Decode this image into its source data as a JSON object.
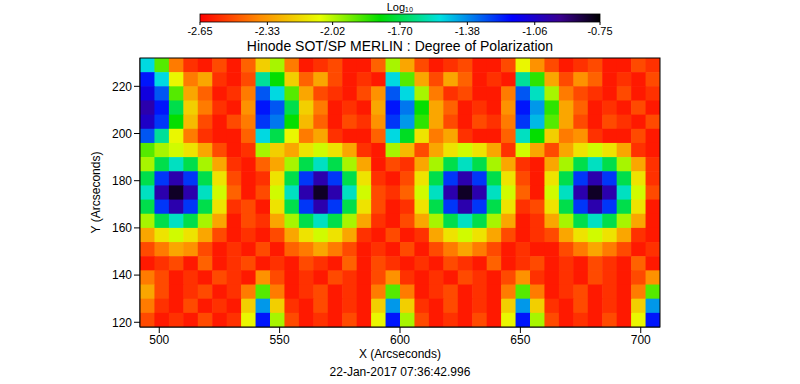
{
  "chart_data": {
    "type": "heatmap",
    "title": "Hinode SOT/SP MERLIN : Degree of Polarization",
    "annotation": "22-Jan-2017 07:36:42.996",
    "x_label": "X (Arcseconds)",
    "y_label": "Y (Arcseconds)",
    "xlim": [
      492,
      708
    ],
    "xticks": [
      500,
      550,
      600,
      650,
      700
    ],
    "ylim": [
      118,
      232
    ],
    "yticks": [
      120,
      140,
      160,
      180,
      200,
      220
    ],
    "x": [
      495,
      501,
      507,
      513,
      519,
      525,
      531,
      537,
      543,
      549,
      555,
      561,
      567,
      573,
      579,
      585,
      591,
      597,
      603,
      609,
      615,
      621,
      627,
      633,
      639,
      645,
      651,
      657,
      663,
      669,
      675,
      681,
      687,
      693,
      699,
      705
    ],
    "y": [
      229,
      223,
      217,
      211,
      205,
      199,
      193,
      187,
      181,
      175,
      169,
      163,
      157,
      151,
      145,
      139,
      133,
      127,
      121
    ],
    "z": [
      [
        -1.5,
        -1.9,
        -2.4,
        -2.55,
        -2.6,
        -2.5,
        -2.6,
        -2.45,
        -2.2,
        -2.0,
        -2.4,
        -2.6,
        -2.55,
        -2.5,
        -2.6,
        -2.6,
        -2.45,
        -2.0,
        -2.3,
        -2.5,
        -2.6,
        -2.55,
        -2.5,
        -2.6,
        -2.6,
        -2.5,
        -2.1,
        -2.35,
        -2.5,
        -2.6,
        -2.55,
        -2.5,
        -2.6,
        -2.6,
        -2.5,
        -2.55
      ],
      [
        -1.2,
        -1.5,
        -2.1,
        -2.4,
        -2.3,
        -2.55,
        -2.6,
        -2.5,
        -1.6,
        -1.8,
        -2.2,
        -2.45,
        -2.3,
        -2.5,
        -2.6,
        -2.55,
        -2.6,
        -1.5,
        -1.9,
        -2.3,
        -2.5,
        -2.3,
        -2.45,
        -2.6,
        -2.55,
        -2.6,
        -1.6,
        -1.85,
        -2.3,
        -2.5,
        -2.35,
        -2.45,
        -2.6,
        -2.55,
        -2.6,
        -2.5
      ],
      [
        -1.1,
        -1.3,
        -1.9,
        -2.3,
        -2.45,
        -2.6,
        -2.55,
        -2.4,
        -1.3,
        -1.5,
        -1.9,
        -2.3,
        -2.5,
        -2.55,
        -2.6,
        -2.5,
        -2.35,
        -1.3,
        -1.5,
        -2.0,
        -2.4,
        -2.55,
        -2.5,
        -2.6,
        -2.6,
        -2.4,
        -1.3,
        -1.55,
        -2.0,
        -2.4,
        -2.5,
        -2.55,
        -2.6,
        -2.5,
        -2.6,
        -2.55
      ],
      [
        -1.0,
        -1.2,
        -1.7,
        -2.2,
        -2.4,
        -2.55,
        -2.6,
        -2.35,
        -1.2,
        -1.3,
        -1.7,
        -2.2,
        -2.4,
        -2.6,
        -2.55,
        -2.6,
        -2.3,
        -1.2,
        -1.35,
        -1.8,
        -2.3,
        -2.45,
        -2.6,
        -2.55,
        -2.6,
        -2.35,
        -1.2,
        -1.4,
        -1.85,
        -2.3,
        -2.45,
        -2.6,
        -2.55,
        -2.6,
        -2.5,
        -2.6
      ],
      [
        -1.05,
        -1.25,
        -1.8,
        -2.25,
        -2.5,
        -2.6,
        -2.5,
        -2.4,
        -1.25,
        -1.35,
        -1.8,
        -2.25,
        -2.45,
        -2.6,
        -2.5,
        -2.55,
        -2.35,
        -1.25,
        -1.4,
        -1.85,
        -2.3,
        -2.5,
        -2.6,
        -2.5,
        -2.55,
        -2.4,
        -1.25,
        -1.45,
        -1.9,
        -2.3,
        -2.5,
        -2.6,
        -2.5,
        -2.55,
        -2.6,
        -2.5
      ],
      [
        -1.3,
        -1.6,
        -2.1,
        -2.4,
        -2.55,
        -2.6,
        -2.6,
        -2.45,
        -1.5,
        -1.7,
        -2.1,
        -2.4,
        -2.3,
        -2.55,
        -2.6,
        -2.6,
        -2.45,
        -1.5,
        -1.75,
        -2.15,
        -2.4,
        -2.3,
        -2.55,
        -2.6,
        -2.6,
        -2.45,
        -1.55,
        -1.8,
        -2.2,
        -2.4,
        -2.35,
        -2.55,
        -2.6,
        -2.6,
        -2.5,
        -2.6
      ],
      [
        -1.9,
        -2.0,
        -2.05,
        -2.15,
        -2.3,
        -2.5,
        -2.6,
        -2.55,
        -2.0,
        -2.2,
        -2.3,
        -2.15,
        -2.05,
        -2.15,
        -2.3,
        -2.55,
        -2.6,
        -2.0,
        -2.25,
        -2.5,
        -2.3,
        -2.15,
        -2.05,
        -2.15,
        -2.3,
        -2.55,
        -2.05,
        -2.3,
        -2.5,
        -2.3,
        -2.15,
        -2.05,
        -2.15,
        -2.3,
        -2.55,
        -2.6
      ],
      [
        -2.0,
        -1.7,
        -1.55,
        -1.7,
        -2.0,
        -2.3,
        -2.55,
        -2.6,
        -2.45,
        -2.3,
        -2.0,
        -1.7,
        -1.55,
        -1.7,
        -2.0,
        -2.3,
        -2.6,
        -2.5,
        -2.55,
        -2.3,
        -2.0,
        -1.7,
        -1.55,
        -1.7,
        -2.0,
        -2.3,
        -2.55,
        -2.6,
        -2.3,
        -2.0,
        -1.7,
        -1.55,
        -1.7,
        -2.0,
        -2.3,
        -2.55
      ],
      [
        -1.7,
        -1.25,
        -1.0,
        -1.25,
        -1.7,
        -2.15,
        -2.5,
        -2.6,
        -2.55,
        -2.15,
        -1.7,
        -1.25,
        -1.0,
        -1.25,
        -1.7,
        -2.15,
        -2.55,
        -2.6,
        -2.5,
        -2.15,
        -1.7,
        -1.25,
        -1.0,
        -1.25,
        -1.7,
        -2.15,
        -2.5,
        -2.6,
        -2.15,
        -1.7,
        -1.25,
        -1.0,
        -1.25,
        -1.7,
        -2.15,
        -2.55
      ],
      [
        -1.55,
        -1.0,
        -0.8,
        -1.0,
        -1.55,
        -2.05,
        -2.45,
        -2.6,
        -2.5,
        -2.05,
        -1.55,
        -1.0,
        -0.8,
        -1.0,
        -1.55,
        -2.05,
        -2.5,
        -2.55,
        -2.45,
        -2.05,
        -1.55,
        -1.0,
        -0.8,
        -1.0,
        -1.55,
        -2.05,
        -2.45,
        -2.6,
        -2.05,
        -1.55,
        -1.0,
        -0.8,
        -1.0,
        -1.55,
        -2.05,
        -2.5
      ],
      [
        -1.7,
        -1.25,
        -1.0,
        -1.25,
        -1.7,
        -2.15,
        -2.55,
        -2.5,
        -2.6,
        -2.15,
        -1.7,
        -1.25,
        -1.0,
        -1.25,
        -1.7,
        -2.15,
        -2.5,
        -2.6,
        -2.55,
        -2.15,
        -1.7,
        -1.25,
        -1.0,
        -1.25,
        -1.7,
        -2.15,
        -2.55,
        -2.5,
        -2.15,
        -1.7,
        -1.25,
        -1.0,
        -1.25,
        -1.7,
        -2.15,
        -2.6
      ],
      [
        -2.0,
        -1.7,
        -1.55,
        -1.7,
        -2.0,
        -2.3,
        -2.6,
        -2.5,
        -2.55,
        -2.3,
        -2.0,
        -1.7,
        -1.55,
        -1.7,
        -2.0,
        -2.3,
        -2.55,
        -2.6,
        -2.5,
        -2.3,
        -2.0,
        -1.7,
        -1.55,
        -1.7,
        -2.0,
        -2.3,
        -2.6,
        -2.55,
        -2.3,
        -2.0,
        -1.7,
        -1.55,
        -1.7,
        -2.0,
        -2.3,
        -2.6
      ],
      [
        -2.3,
        -2.15,
        -2.05,
        -2.15,
        -2.3,
        -2.5,
        -2.6,
        -2.55,
        -2.6,
        -2.5,
        -2.3,
        -2.15,
        -2.05,
        -2.15,
        -2.3,
        -2.55,
        -2.6,
        -2.5,
        -2.6,
        -2.55,
        -2.3,
        -2.15,
        -2.05,
        -2.15,
        -2.3,
        -2.5,
        -2.6,
        -2.55,
        -2.5,
        -2.3,
        -2.15,
        -2.05,
        -2.15,
        -2.3,
        -2.55,
        -2.6
      ],
      [
        -2.5,
        -2.4,
        -2.3,
        -2.35,
        -2.5,
        -2.6,
        -2.55,
        -2.6,
        -2.5,
        -2.6,
        -2.45,
        -2.4,
        -2.3,
        -2.4,
        -2.5,
        -2.6,
        -2.55,
        -2.6,
        -2.5,
        -2.6,
        -2.5,
        -2.4,
        -2.3,
        -2.4,
        -2.5,
        -2.6,
        -2.55,
        -2.6,
        -2.6,
        -2.5,
        -2.4,
        -2.3,
        -2.4,
        -2.5,
        -2.6,
        -2.55
      ],
      [
        -2.6,
        -2.55,
        -2.5,
        -2.6,
        -2.45,
        -2.6,
        -2.55,
        -2.5,
        -2.6,
        -2.55,
        -2.6,
        -2.5,
        -2.55,
        -2.6,
        -2.45,
        -2.6,
        -2.5,
        -2.55,
        -2.6,
        -2.55,
        -2.6,
        -2.5,
        -2.55,
        -2.6,
        -2.45,
        -2.6,
        -2.55,
        -2.5,
        -2.6,
        -2.55,
        -2.6,
        -2.5,
        -2.55,
        -2.6,
        -2.45,
        -2.6
      ],
      [
        -2.4,
        -2.5,
        -2.6,
        -2.55,
        -2.6,
        -2.5,
        -2.55,
        -2.6,
        -2.35,
        -2.5,
        -2.6,
        -2.55,
        -2.6,
        -2.5,
        -2.55,
        -2.6,
        -2.5,
        -2.35,
        -2.55,
        -2.6,
        -2.55,
        -2.6,
        -2.5,
        -2.55,
        -2.6,
        -2.5,
        -2.35,
        -2.55,
        -2.6,
        -2.55,
        -2.6,
        -2.5,
        -2.55,
        -2.6,
        -2.5,
        -2.35
      ],
      [
        -2.3,
        -2.5,
        -2.6,
        -2.55,
        -2.5,
        -2.6,
        -2.55,
        -2.4,
        -1.9,
        -2.4,
        -2.6,
        -2.55,
        -2.5,
        -2.6,
        -2.55,
        -2.6,
        -2.4,
        -1.9,
        -2.4,
        -2.6,
        -2.55,
        -2.5,
        -2.6,
        -2.55,
        -2.6,
        -2.4,
        -1.9,
        -2.4,
        -2.6,
        -2.55,
        -2.5,
        -2.6,
        -2.55,
        -2.6,
        -2.4,
        -1.9
      ],
      [
        -2.4,
        -2.55,
        -2.6,
        -2.5,
        -2.6,
        -2.55,
        -2.6,
        -2.2,
        -1.4,
        -2.2,
        -2.55,
        -2.6,
        -2.5,
        -2.6,
        -2.55,
        -2.6,
        -2.2,
        -1.4,
        -2.2,
        -2.55,
        -2.6,
        -2.5,
        -2.6,
        -2.55,
        -2.6,
        -2.2,
        -1.4,
        -2.2,
        -2.55,
        -2.6,
        -2.5,
        -2.6,
        -2.55,
        -2.6,
        -2.2,
        -1.4
      ],
      [
        -2.5,
        -2.6,
        -2.55,
        -2.6,
        -2.5,
        -2.6,
        -2.55,
        -2.1,
        -1.2,
        -2.0,
        -2.5,
        -2.6,
        -2.55,
        -2.6,
        -2.5,
        -2.6,
        -2.1,
        -1.2,
        -2.0,
        -2.5,
        -2.6,
        -2.55,
        -2.6,
        -2.5,
        -2.6,
        -2.1,
        -1.2,
        -2.0,
        -2.5,
        -2.6,
        -2.55,
        -2.6,
        -2.5,
        -2.6,
        -2.1,
        -1.2
      ]
    ],
    "colorbar": {
      "label": "Log₁₀",
      "range": [
        -2.65,
        -0.75
      ],
      "ticks": [
        -2.65,
        -2.33,
        -2.02,
        {
          "value": -1.7,
          "label": "-1.70"
        },
        -1.38,
        -1.06,
        -0.75
      ]
    }
  }
}
